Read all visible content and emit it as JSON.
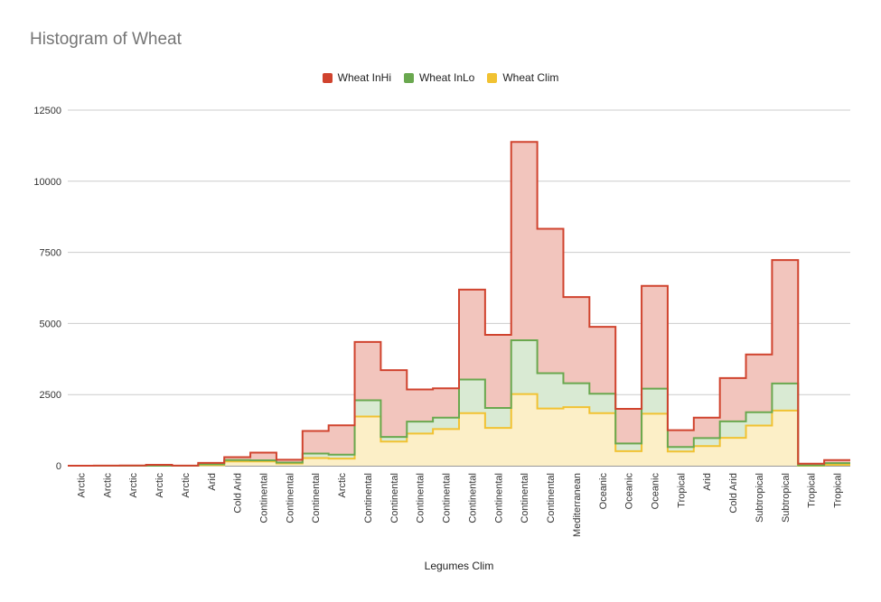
{
  "chart_data": {
    "type": "area",
    "title": "Histogram of Wheat",
    "xlabel": "Legumes Clim",
    "ylabel": "",
    "ylim": [
      0,
      12500
    ],
    "yticks": [
      0,
      2500,
      5000,
      7500,
      10000,
      12500
    ],
    "ytick_labels": [
      "0",
      "2500",
      "5000",
      "7500",
      "10000",
      "12500"
    ],
    "grid": true,
    "legend_position": "top",
    "stacked": true,
    "step": true,
    "categories": [
      "Arctic",
      "Arctic",
      "Arctic",
      "Arctic",
      "Arctic",
      "Arid",
      "Cold Arid",
      "Continental",
      "Continental",
      "Continental",
      "Arctic",
      "Continental",
      "Continental",
      "Continental",
      "Continental",
      "Continental",
      "Continental",
      "Continental",
      "Continental",
      "Mediterranean",
      "Oceanic",
      "Oceanic",
      "Oceanic",
      "Tropical",
      "Arid",
      "Cold Arid",
      "Subtropical",
      "Subtropical",
      "Tropical",
      "Tropical"
    ],
    "series": [
      {
        "name": "Wheat InHi",
        "color": "#d0432e",
        "fill": "#f2c5bd",
        "values": [
          0,
          5,
          8,
          30,
          5,
          50,
          100,
          270,
          100,
          790,
          1030,
          2050,
          2350,
          1130,
          1030,
          3160,
          2570,
          6970,
          5080,
          3030,
          2350,
          1220,
          3610,
          590,
          720,
          1520,
          2030,
          4340,
          60,
          110
        ]
      },
      {
        "name": "Wheat InLo",
        "color": "#6aa84f",
        "fill": "#d9ead3",
        "values": [
          0,
          0,
          0,
          0,
          0,
          30,
          50,
          40,
          30,
          160,
          140,
          570,
          160,
          420,
          400,
          1180,
          700,
          1890,
          1240,
          840,
          680,
          270,
          880,
          160,
          280,
          580,
          470,
          950,
          10,
          60
        ]
      },
      {
        "name": "Wheat Clim",
        "color": "#f1c232",
        "fill": "#fcefc7",
        "values": [
          0,
          0,
          0,
          0,
          0,
          20,
          150,
          150,
          80,
          270,
          250,
          1730,
          850,
          1130,
          1290,
          1850,
          1330,
          2520,
          2010,
          2060,
          1850,
          510,
          1830,
          500,
          690,
          980,
          1410,
          1940,
          0,
          30
        ]
      }
    ]
  }
}
